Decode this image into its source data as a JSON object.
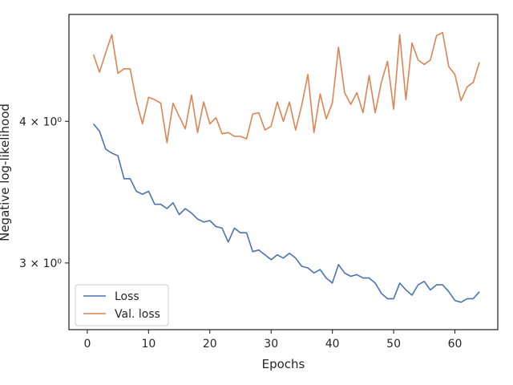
{
  "chart_data": {
    "type": "line",
    "xlabel": "Epochs",
    "ylabel": "Negative log-likelihood",
    "yscale": "log",
    "xlim": [
      -3,
      67
    ],
    "ylim": [
      2.62,
      4.97
    ],
    "xticks": [
      0,
      10,
      20,
      30,
      40,
      50,
      60
    ],
    "yticks": [
      {
        "value": 3,
        "label": "3 × 10⁰"
      },
      {
        "value": 4,
        "label": "4 × 10⁰"
      }
    ],
    "grid": false,
    "legend": "lower-left",
    "x": [
      1,
      2,
      3,
      4,
      5,
      6,
      7,
      8,
      9,
      10,
      11,
      12,
      13,
      14,
      15,
      16,
      17,
      18,
      19,
      20,
      21,
      22,
      23,
      24,
      25,
      26,
      27,
      28,
      29,
      30,
      31,
      32,
      33,
      34,
      35,
      36,
      37,
      38,
      39,
      40,
      41,
      42,
      43,
      44,
      45,
      46,
      47,
      48,
      49,
      50,
      51,
      52,
      53,
      54,
      55,
      56,
      57,
      58,
      59,
      60,
      61,
      62,
      63,
      64
    ],
    "series": [
      {
        "name": "Loss",
        "color": "#4c72b0",
        "values": [
          3.98,
          3.92,
          3.78,
          3.75,
          3.73,
          3.56,
          3.56,
          3.47,
          3.45,
          3.47,
          3.38,
          3.38,
          3.35,
          3.39,
          3.31,
          3.35,
          3.32,
          3.28,
          3.26,
          3.27,
          3.23,
          3.22,
          3.13,
          3.22,
          3.19,
          3.19,
          3.07,
          3.08,
          3.05,
          3.02,
          3.05,
          3.03,
          3.06,
          3.03,
          2.98,
          2.97,
          2.94,
          2.96,
          2.91,
          2.88,
          2.99,
          2.94,
          2.92,
          2.93,
          2.91,
          2.91,
          2.88,
          2.82,
          2.79,
          2.79,
          2.88,
          2.84,
          2.81,
          2.87,
          2.89,
          2.84,
          2.87,
          2.87,
          2.83,
          2.78,
          2.77,
          2.79,
          2.79,
          2.83
        ]
      },
      {
        "name": "Val. loss",
        "color": "#dd8452",
        "values": [
          4.58,
          4.42,
          4.6,
          4.77,
          4.41,
          4.45,
          4.45,
          4.17,
          3.98,
          4.2,
          4.18,
          4.15,
          3.83,
          4.15,
          4.04,
          3.94,
          4.22,
          3.91,
          4.16,
          3.98,
          4.03,
          3.9,
          3.91,
          3.88,
          3.88,
          3.86,
          4.06,
          4.07,
          3.93,
          3.96,
          4.16,
          4.0,
          4.16,
          3.93,
          4.13,
          4.4,
          3.91,
          4.23,
          4.02,
          4.15,
          4.65,
          4.24,
          4.14,
          4.24,
          4.07,
          4.39,
          4.07,
          4.33,
          4.52,
          4.1,
          4.77,
          4.18,
          4.69,
          4.53,
          4.49,
          4.53,
          4.76,
          4.79,
          4.47,
          4.4,
          4.17,
          4.29,
          4.33,
          4.51
        ]
      }
    ]
  }
}
